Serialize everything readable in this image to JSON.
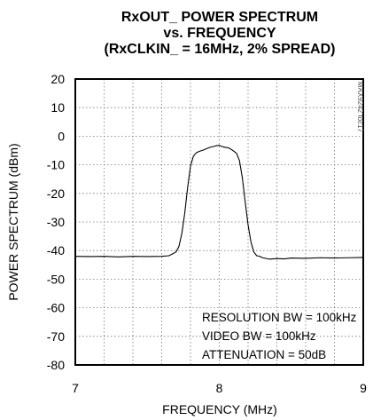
{
  "chart_data": {
    "type": "line",
    "title_lines": [
      "RxOUT_ POWER SPECTRUM",
      "vs. FREQUENCY",
      "(RxCLKIN_ = 16MHz, 2% SPREAD)"
    ],
    "xlabel": "FREQUENCY (MHz)",
    "ylabel": "POWER SPECTRUM (dBm)",
    "xlim": [
      7,
      9
    ],
    "ylim": [
      -80,
      20
    ],
    "x_ticks": [
      "7",
      "8",
      "9"
    ],
    "y_ticks": [
      "20",
      "10",
      "0",
      "-10",
      "-20",
      "-30",
      "-40",
      "-50",
      "-60",
      "-70",
      "-80"
    ],
    "grid": true,
    "annotations": [
      "RESOLUTION BW = 100kHz",
      "VIDEO BW = 100kHz",
      "ATTENUATION = 50dB"
    ],
    "figure_code": "MAX9242 toc17",
    "series": [
      {
        "x": [
          7.0,
          7.1,
          7.2,
          7.3,
          7.4,
          7.5,
          7.6,
          7.65,
          7.7,
          7.72,
          7.74,
          7.76,
          7.78,
          7.8,
          7.82,
          7.84,
          7.86,
          7.88,
          7.9,
          7.92,
          7.94,
          7.96,
          7.98,
          8.0,
          8.02,
          8.04,
          8.06,
          8.08,
          8.1,
          8.12,
          8.14,
          8.16,
          8.18,
          8.2,
          8.22,
          8.24,
          8.26,
          8.28,
          8.3,
          8.35,
          8.4,
          8.45,
          8.5,
          8.6,
          8.7,
          8.8,
          8.9,
          9.0
        ],
        "y": [
          -42.0,
          -42.1,
          -42.0,
          -42.2,
          -42.0,
          -42.1,
          -42.0,
          -41.8,
          -40.5,
          -38.5,
          -34.0,
          -27.0,
          -18.0,
          -10.5,
          -7.0,
          -5.8,
          -5.3,
          -5.0,
          -4.6,
          -4.2,
          -3.8,
          -3.6,
          -3.3,
          -3.2,
          -3.6,
          -3.9,
          -4.0,
          -4.5,
          -5.2,
          -6.0,
          -8.5,
          -14.5,
          -23.0,
          -31.0,
          -37.0,
          -40.5,
          -41.8,
          -42.0,
          -42.5,
          -43.0,
          -42.8,
          -42.9,
          -42.6,
          -42.7,
          -42.5,
          -42.6,
          -42.5,
          -42.4
        ]
      }
    ]
  }
}
